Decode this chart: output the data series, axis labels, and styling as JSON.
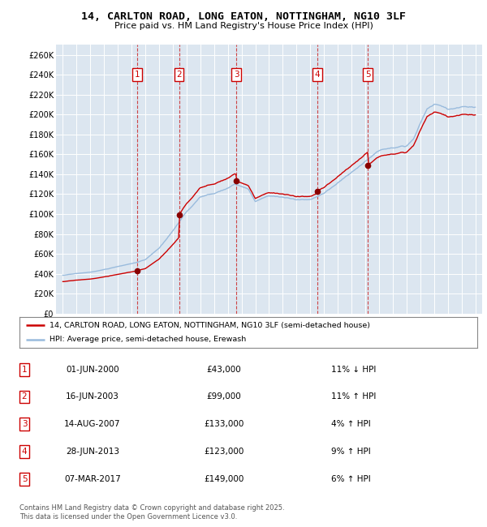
{
  "title": "14, CARLTON ROAD, LONG EATON, NOTTINGHAM, NG10 3LF",
  "subtitle": "Price paid vs. HM Land Registry's House Price Index (HPI)",
  "background_color": "#dce6f0",
  "plot_bg_color": "#dce6f0",
  "red_line_label": "14, CARLTON ROAD, LONG EATON, NOTTINGHAM, NG10 3LF (semi-detached house)",
  "blue_line_label": "HPI: Average price, semi-detached house, Erewash",
  "footer": "Contains HM Land Registry data © Crown copyright and database right 2025.\nThis data is licensed under the Open Government Licence v3.0.",
  "transactions": [
    {
      "num": 1,
      "date": "01-JUN-2000",
      "price": 43000,
      "pct": "11%",
      "dir": "↓",
      "year": 2000.42
    },
    {
      "num": 2,
      "date": "16-JUN-2003",
      "price": 99000,
      "pct": "11%",
      "dir": "↑",
      "year": 2003.45
    },
    {
      "num": 3,
      "date": "14-AUG-2007",
      "price": 133000,
      "pct": "4%",
      "dir": "↑",
      "year": 2007.62
    },
    {
      "num": 4,
      "date": "28-JUN-2013",
      "price": 123000,
      "pct": "9%",
      "dir": "↑",
      "year": 2013.49
    },
    {
      "num": 5,
      "date": "07-MAR-2017",
      "price": 149000,
      "pct": "6%",
      "dir": "↑",
      "year": 2017.18
    }
  ],
  "ylim": [
    0,
    270000
  ],
  "yticks": [
    0,
    20000,
    40000,
    60000,
    80000,
    100000,
    120000,
    140000,
    160000,
    180000,
    200000,
    220000,
    240000,
    260000
  ],
  "xlim": [
    1994.5,
    2025.5
  ],
  "xticks": [
    1995,
    1996,
    1997,
    1998,
    1999,
    2000,
    2001,
    2002,
    2003,
    2004,
    2005,
    2006,
    2007,
    2008,
    2009,
    2010,
    2011,
    2012,
    2013,
    2014,
    2015,
    2016,
    2017,
    2018,
    2019,
    2020,
    2021,
    2022,
    2023,
    2024,
    2025
  ]
}
